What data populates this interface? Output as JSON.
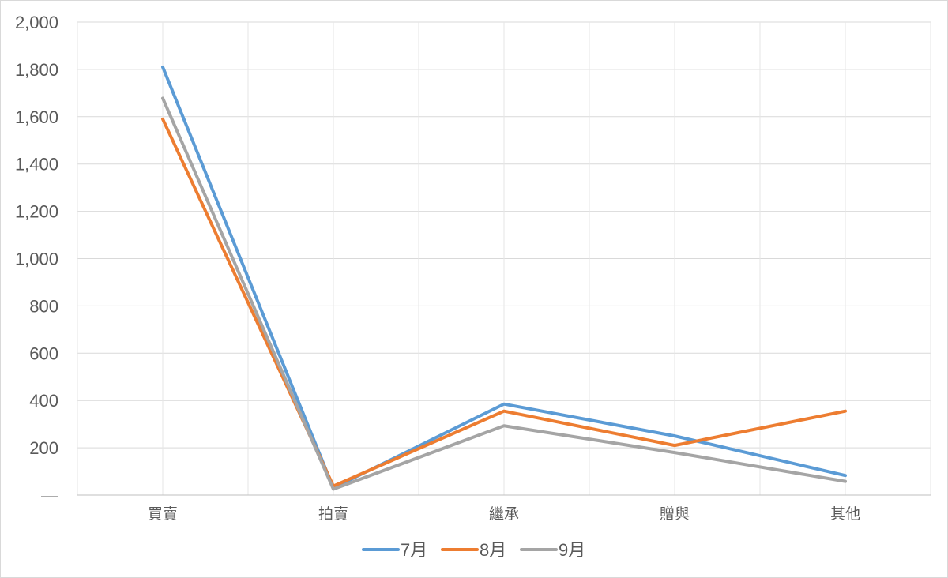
{
  "chart_data": {
    "type": "line",
    "categories": [
      "買賣",
      "拍賣",
      "繼承",
      "贈與",
      "其他"
    ],
    "y_ticks": [
      "—",
      "200",
      "400",
      "600",
      "800",
      "1,000",
      "1,200",
      "1,400",
      "1,600",
      "1,800",
      "2,000"
    ],
    "ylim": [
      0,
      2000
    ],
    "y_step": 200,
    "grid": true,
    "legend_position": "bottom",
    "series": [
      {
        "name": "7月",
        "color": "#5B9BD5",
        "values": [
          1810,
          30,
          385,
          250,
          83
        ]
      },
      {
        "name": "8月",
        "color": "#ED7D31",
        "values": [
          1590,
          38,
          355,
          210,
          355
        ]
      },
      {
        "name": "9月",
        "color": "#A5A5A5",
        "values": [
          1678,
          25,
          293,
          180,
          58
        ]
      }
    ]
  }
}
